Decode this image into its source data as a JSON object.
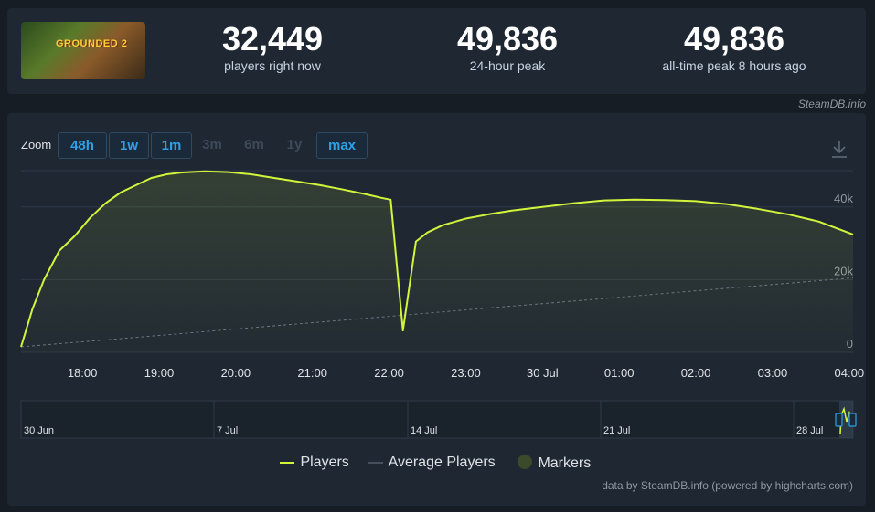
{
  "stats": {
    "players_now": {
      "value": "32,449",
      "label": "players right now"
    },
    "peak_24h": {
      "value": "49,836",
      "label": "24-hour peak"
    },
    "peak_all": {
      "value": "49,836",
      "label": "all-time peak 8 hours ago"
    }
  },
  "game_logo_text": "GROUNDED 2",
  "credit_top": "SteamDB.info",
  "zoom": {
    "label": "Zoom",
    "buttons": [
      {
        "label": "48h",
        "active": true
      },
      {
        "label": "1w",
        "active": true
      },
      {
        "label": "1m",
        "active": true
      },
      {
        "label": "3m",
        "active": false
      },
      {
        "label": "6m",
        "active": false
      },
      {
        "label": "1y",
        "active": false
      },
      {
        "label": "max",
        "active": true
      }
    ]
  },
  "download_icon": "download-icon",
  "chart_data": {
    "type": "line",
    "ylim": [
      0,
      50000
    ],
    "yticks": [
      {
        "value": 0,
        "label": "0"
      },
      {
        "value": 20000,
        "label": "20k"
      },
      {
        "value": 40000,
        "label": "40k"
      }
    ],
    "xlim_hours": [
      17.2,
      28.05
    ],
    "xticks": [
      {
        "h": 18,
        "label": "18:00"
      },
      {
        "h": 19,
        "label": "19:00"
      },
      {
        "h": 20,
        "label": "20:00"
      },
      {
        "h": 21,
        "label": "21:00"
      },
      {
        "h": 22,
        "label": "22:00"
      },
      {
        "h": 23,
        "label": "23:00"
      },
      {
        "h": 24,
        "label": "30 Jul"
      },
      {
        "h": 25,
        "label": "01:00"
      },
      {
        "h": 26,
        "label": "02:00"
      },
      {
        "h": 27,
        "label": "03:00"
      },
      {
        "h": 28,
        "label": "04:00"
      }
    ],
    "series": [
      {
        "name": "Players",
        "color": "#d2f53c",
        "points": [
          [
            17.2,
            1500
          ],
          [
            17.35,
            12000
          ],
          [
            17.5,
            20000
          ],
          [
            17.7,
            28000
          ],
          [
            17.9,
            32000
          ],
          [
            18.1,
            37000
          ],
          [
            18.3,
            41000
          ],
          [
            18.5,
            44000
          ],
          [
            18.7,
            46000
          ],
          [
            18.9,
            48000
          ],
          [
            19.1,
            49000
          ],
          [
            19.3,
            49500
          ],
          [
            19.6,
            49800
          ],
          [
            19.9,
            49600
          ],
          [
            20.2,
            49000
          ],
          [
            20.5,
            48000
          ],
          [
            20.8,
            47000
          ],
          [
            21.1,
            46000
          ],
          [
            21.4,
            44800
          ],
          [
            21.7,
            43500
          ],
          [
            21.9,
            42500
          ],
          [
            22.02,
            42000
          ],
          [
            22.18,
            6000
          ],
          [
            22.35,
            30500
          ],
          [
            22.5,
            33000
          ],
          [
            22.7,
            35000
          ],
          [
            23.0,
            36800
          ],
          [
            23.3,
            38000
          ],
          [
            23.6,
            39000
          ],
          [
            24.0,
            40000
          ],
          [
            24.4,
            41000
          ],
          [
            24.8,
            41800
          ],
          [
            25.2,
            42000
          ],
          [
            25.6,
            41900
          ],
          [
            26.0,
            41600
          ],
          [
            26.4,
            40800
          ],
          [
            26.8,
            39500
          ],
          [
            27.2,
            38000
          ],
          [
            27.6,
            36000
          ],
          [
            28.05,
            32449
          ]
        ]
      },
      {
        "name": "Average Players",
        "color": "#6b7580",
        "points": [
          [
            17.2,
            1500
          ],
          [
            28.05,
            20500
          ]
        ]
      }
    ],
    "legend": [
      "Players",
      "Average Players",
      "Markers"
    ]
  },
  "navigator": {
    "labels": [
      "30 Jun",
      "7 Jul",
      "14 Jul",
      "21 Jul",
      "28 Jul"
    ]
  },
  "credit_bottom": "data by SteamDB.info (powered by highcharts.com)"
}
